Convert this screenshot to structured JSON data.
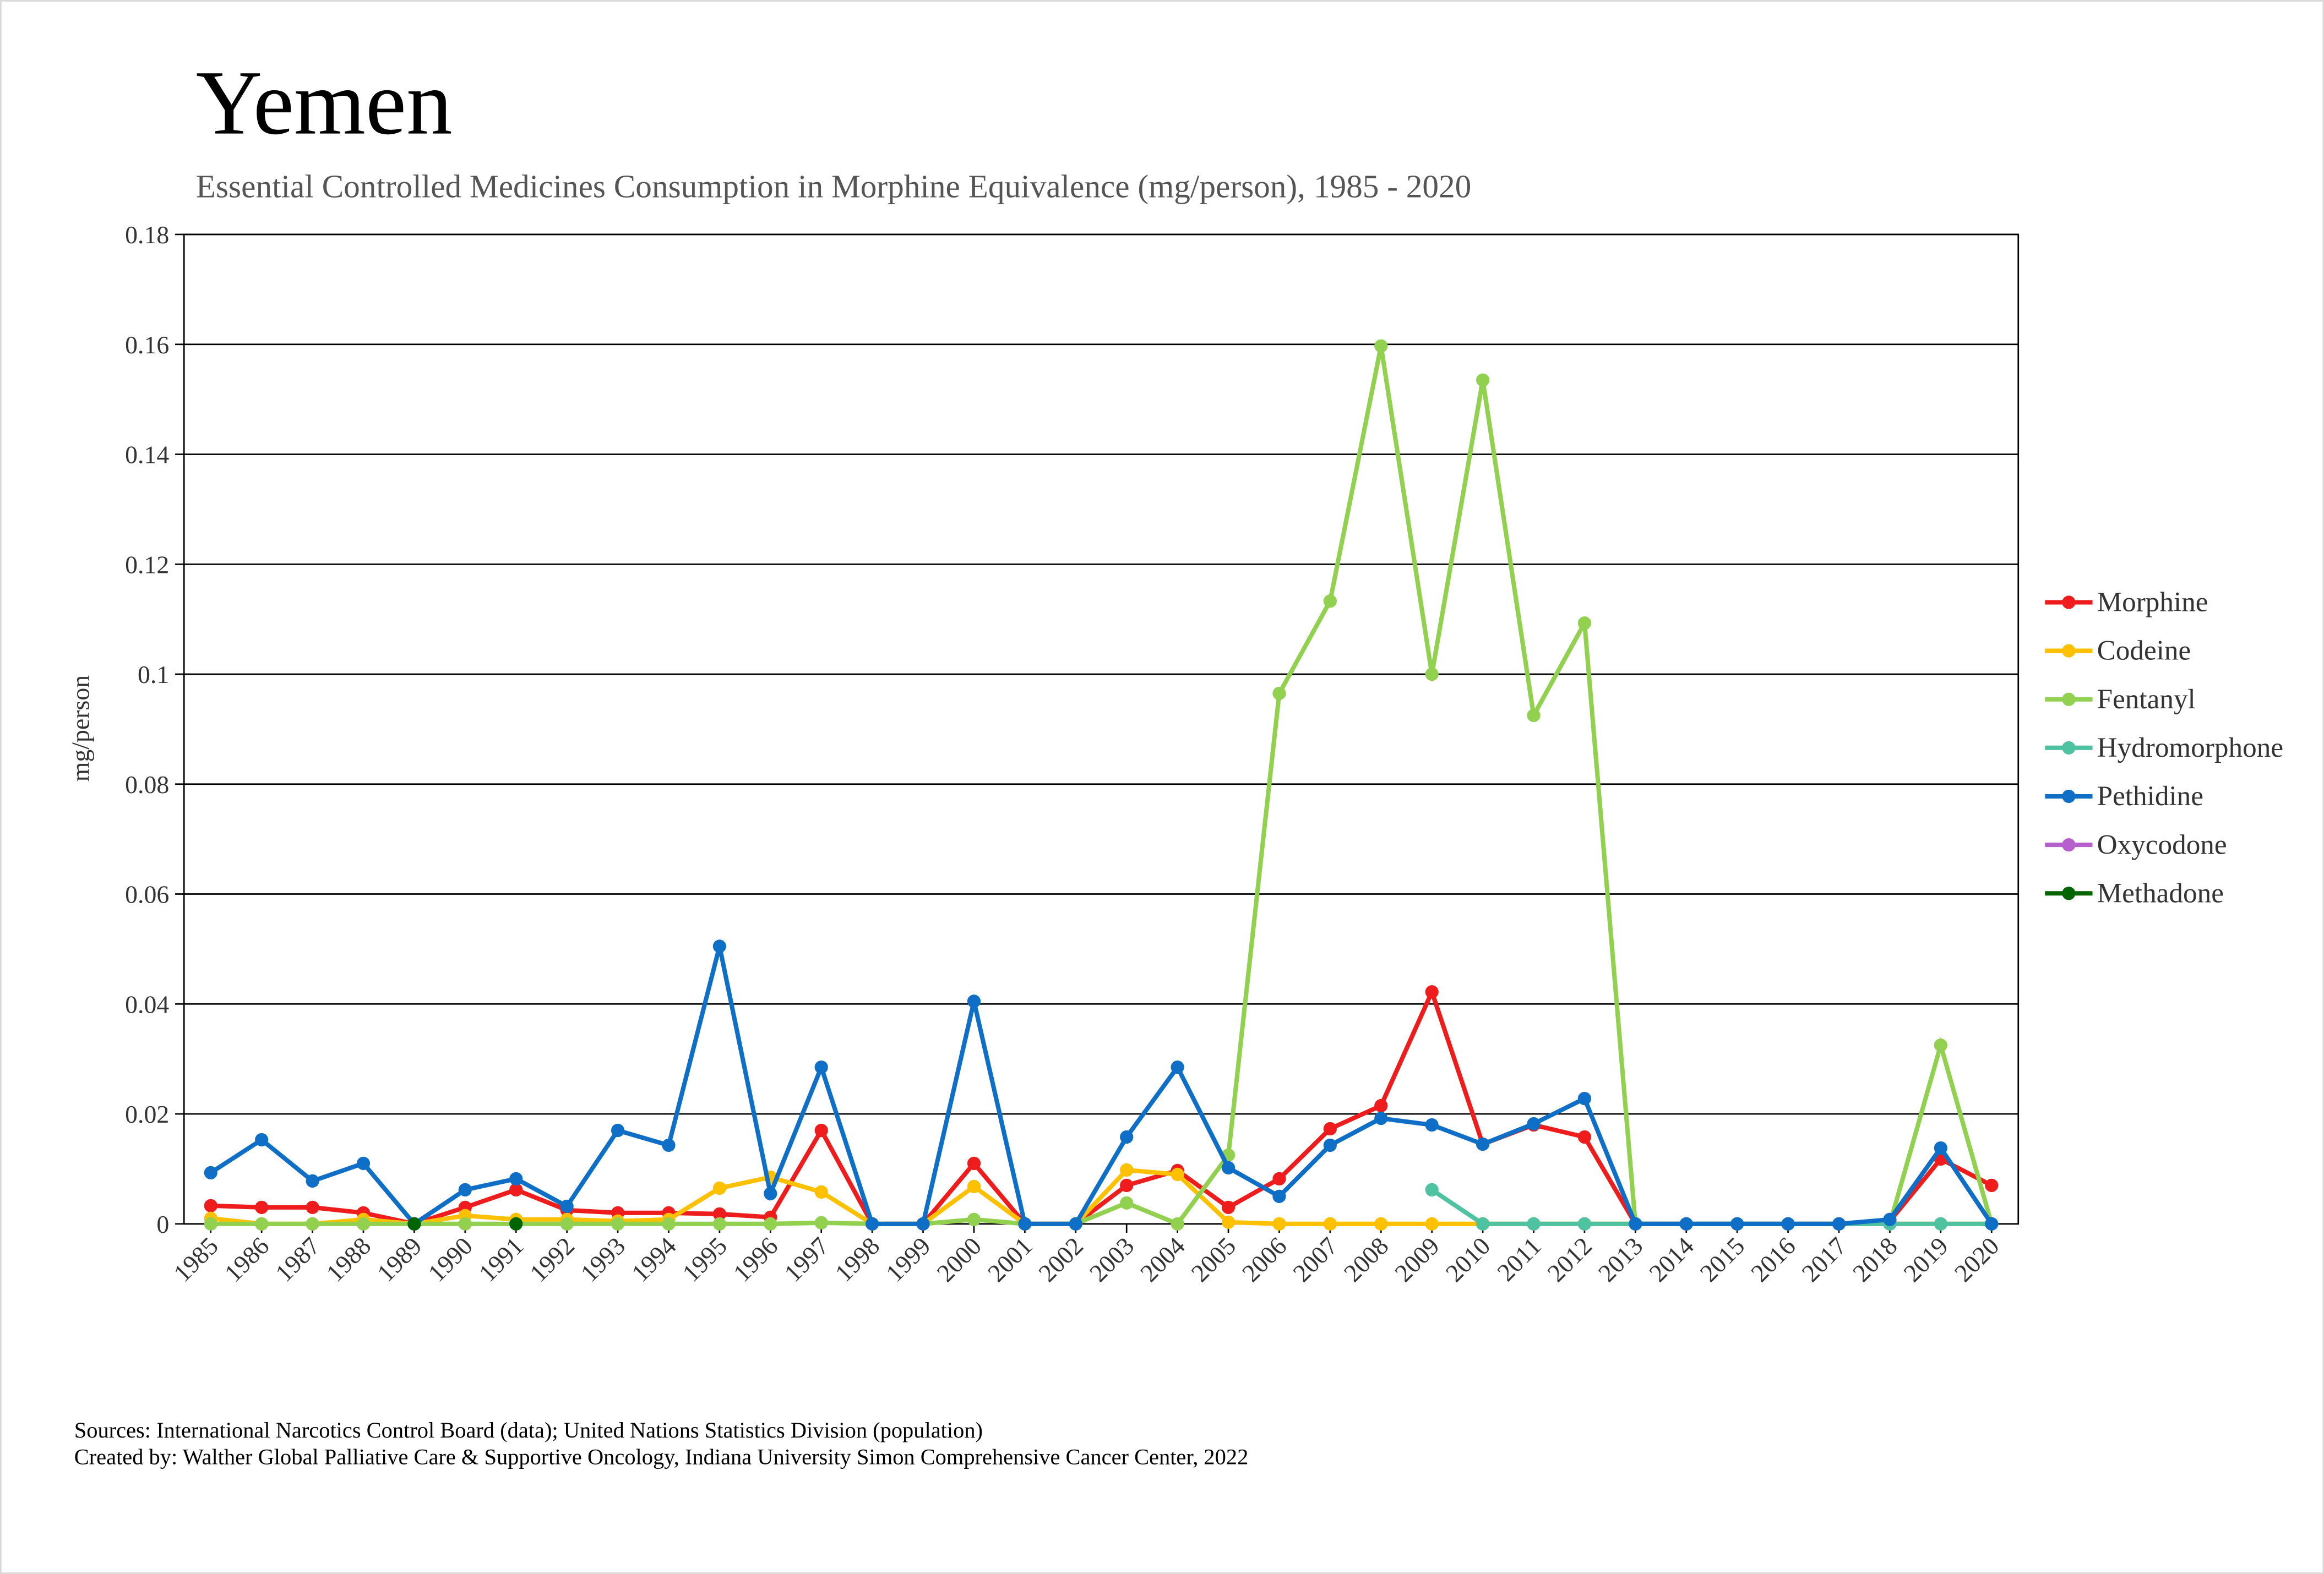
{
  "chart_data": {
    "type": "line",
    "title": "Yemen",
    "subtitle": "Essential Controlled Medicines Consumption in Morphine Equivalence (mg/person), 1985 - 2020",
    "y_label": "mg/person",
    "categories": [
      "1985",
      "1986",
      "1987",
      "1988",
      "1989",
      "1990",
      "1991",
      "1992",
      "1993",
      "1994",
      "1995",
      "1996",
      "1997",
      "1998",
      "1999",
      "2000",
      "2001",
      "2002",
      "2003",
      "2004",
      "2005",
      "2006",
      "2007",
      "2008",
      "2009",
      "2010",
      "2011",
      "2012",
      "2013",
      "2014",
      "2015",
      "2016",
      "2017",
      "2018",
      "2019",
      "2020"
    ],
    "ylim": [
      0,
      0.18
    ],
    "yticks": [
      0,
      0.02,
      0.04,
      0.06,
      0.08,
      0.1,
      0.12,
      0.14,
      0.16,
      0.18
    ],
    "grid": true,
    "legend": "right",
    "series": [
      {
        "name": "Morphine",
        "color": "#ee1c1c",
        "values": [
          0.0033,
          0.003,
          0.003,
          0.002,
          0,
          0.003,
          0.0062,
          0.0025,
          0.002,
          0.002,
          0.0018,
          0.0012,
          0.017,
          0,
          0,
          0.011,
          0,
          0,
          0.007,
          0.0097,
          0.003,
          0.0082,
          0.0173,
          0.0215,
          0.0422,
          0.0145,
          0.018,
          0.0158,
          0,
          0,
          0,
          0,
          0,
          0.0005,
          0.0118,
          0.007
        ]
      },
      {
        "name": "Codeine",
        "color": "#ffc000",
        "values": [
          0.001,
          0,
          0,
          0.0008,
          0,
          0.0015,
          0.0008,
          0.0008,
          0.0005,
          0.0008,
          0.0065,
          0.0085,
          0.0058,
          0,
          0,
          0.0068,
          0,
          0,
          0.0098,
          0.009,
          0.0003,
          0,
          0,
          0,
          0,
          0,
          0,
          0,
          0,
          0,
          0,
          0,
          0,
          0,
          0,
          0
        ]
      },
      {
        "name": "Fentanyl",
        "color": "#92d050",
        "values": [
          0,
          0,
          0,
          0,
          0,
          0,
          0,
          0,
          0,
          0,
          0,
          0,
          0.0002,
          0,
          0,
          0.0008,
          0,
          0,
          0.0038,
          0,
          0.0125,
          0.0965,
          0.1133,
          0.1597,
          0.1,
          0.1535,
          0.0925,
          0.1093,
          0,
          0,
          0,
          0,
          0,
          0,
          0.0325,
          0
        ]
      },
      {
        "name": "Hydromorphone",
        "color": "#4fc3a1",
        "values": [
          null,
          null,
          null,
          null,
          null,
          null,
          null,
          null,
          null,
          null,
          null,
          null,
          null,
          null,
          null,
          null,
          null,
          null,
          null,
          null,
          null,
          null,
          null,
          null,
          0.0062,
          0,
          0,
          0,
          0,
          0,
          0,
          0,
          0,
          0,
          0,
          0
        ]
      },
      {
        "name": "Pethidine",
        "color": "#0f6fc6",
        "values": [
          0.0093,
          0.0153,
          0.0078,
          0.011,
          0,
          0.0062,
          0.0082,
          0.0032,
          0.017,
          0.0143,
          0.0505,
          0.0055,
          0.0285,
          0,
          0,
          0.0405,
          0,
          0,
          0.0158,
          0.0285,
          0.0102,
          0.005,
          0.0143,
          0.0192,
          0.018,
          0.0145,
          0.0182,
          0.0228,
          0,
          0,
          0,
          0,
          0,
          0.0008,
          0.0138,
          0
        ]
      },
      {
        "name": "Oxycodone",
        "color": "#b660cd",
        "values": [
          null,
          null,
          null,
          null,
          null,
          null,
          null,
          null,
          null,
          null,
          null,
          null,
          null,
          null,
          null,
          null,
          null,
          null,
          null,
          null,
          null,
          null,
          null,
          null,
          null,
          null,
          null,
          null,
          null,
          null,
          null,
          null,
          null,
          null,
          null,
          null
        ]
      },
      {
        "name": "Methadone",
        "color": "#006400",
        "values": [
          null,
          null,
          null,
          null,
          0,
          null,
          0,
          null,
          null,
          null,
          null,
          null,
          null,
          null,
          null,
          null,
          null,
          null,
          null,
          null,
          null,
          null,
          null,
          null,
          null,
          null,
          null,
          null,
          null,
          null,
          null,
          null,
          null,
          null,
          null,
          null
        ]
      }
    ],
    "footnotes": [
      "Sources: International Narcotics Control Board (data); United Nations Statistics Division (population)",
      "Created by: Walther Global Palliative Care & Supportive Oncology, Indiana University Simon Comprehensive Cancer Center, 2022"
    ]
  }
}
